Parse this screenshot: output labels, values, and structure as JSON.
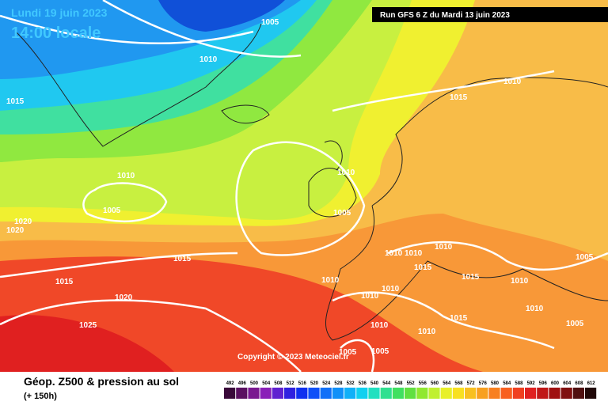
{
  "header": {
    "date": "Lundi 19 juin 2023",
    "time": "14:00 locale",
    "run": "Run GFS 6 Z du Mardi 13 juin 2023"
  },
  "copyright": "Copyright © 2023 Meteociel.fr",
  "footer": {
    "title": "Géop. Z500 & pression au sol",
    "lead": "(+ 150h)"
  },
  "scale": {
    "labels": [
      492,
      496,
      500,
      504,
      508,
      512,
      516,
      520,
      524,
      528,
      532,
      536,
      540,
      544,
      548,
      552,
      556,
      560,
      564,
      568,
      572,
      576,
      580,
      584,
      588,
      592,
      596,
      600,
      604,
      608,
      612
    ],
    "colors": [
      "#3a0a3a",
      "#5a1060",
      "#7a1890",
      "#8a20b8",
      "#6020d0",
      "#3020e0",
      "#1030f0",
      "#1050f8",
      "#1070f8",
      "#1090f8",
      "#10b0f8",
      "#10d0f0",
      "#20e0c0",
      "#30e090",
      "#40e060",
      "#60e040",
      "#90e830",
      "#c0f030",
      "#e8f028",
      "#f8e020",
      "#f8c020",
      "#f8a020",
      "#f88020",
      "#f86020",
      "#f04020",
      "#e02020",
      "#c01818",
      "#a01010",
      "#801010",
      "#501010",
      "#200808"
    ]
  },
  "isobar_labels": [
    1005,
    1010,
    1015,
    1010,
    1005,
    1010,
    1005,
    1020,
    1020,
    1015,
    1015,
    1020,
    1025,
    1010,
    1015,
    1010,
    1010,
    1010,
    1015,
    1010,
    1010,
    1010,
    1015,
    1010,
    1015,
    1010,
    1005,
    1005,
    1010,
    1010,
    1005,
    1005
  ]
}
